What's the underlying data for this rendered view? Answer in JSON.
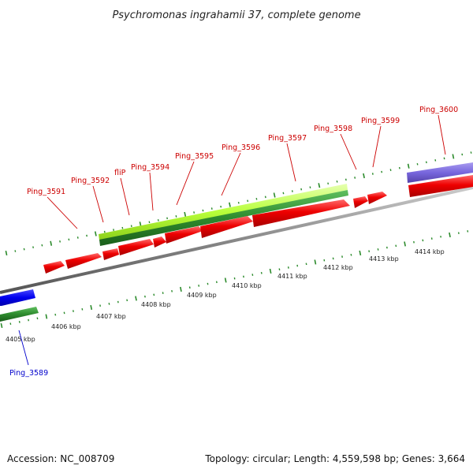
{
  "title": "Psychromonas ingrahamii 37, complete genome",
  "footer": {
    "accession": "Accession: NC_008709",
    "summary": "Topology: circular; Length: 4,559,598 bp; Genes: 3,664"
  },
  "colors": {
    "forward_cds": "#ee0000",
    "reverse_cds": "#0000ee",
    "highlight_green": "#2e8b2e",
    "highlight_lime": "#b8ff3a",
    "highlight_purple": "#7766dd",
    "tick_color": "#2a8a2a",
    "label_red": "#cc0000",
    "label_blue": "#0000cc",
    "backbone": "#888888"
  },
  "axis": {
    "unit": "kbp",
    "labels": [
      "4405 kbp",
      "4406 kbp",
      "4407 kbp",
      "4408 kbp",
      "4409 kbp",
      "4410 kbp",
      "4411 kbp",
      "4412 kbp",
      "4413 kbp",
      "4414 kbp"
    ]
  },
  "gene_labels": [
    {
      "text": "Ping_3589",
      "color": "blue"
    },
    {
      "text": "Ping_3591",
      "color": "red"
    },
    {
      "text": "Ping_3592",
      "color": "red"
    },
    {
      "text": "fliP",
      "color": "red"
    },
    {
      "text": "Ping_3594",
      "color": "red"
    },
    {
      "text": "Ping_3595",
      "color": "red"
    },
    {
      "text": "Ping_3596",
      "color": "red"
    },
    {
      "text": "Ping_3597",
      "color": "red"
    },
    {
      "text": "Ping_3598",
      "color": "red"
    },
    {
      "text": "Ping_3599",
      "color": "red"
    },
    {
      "text": "Ping_3600",
      "color": "red"
    }
  ]
}
